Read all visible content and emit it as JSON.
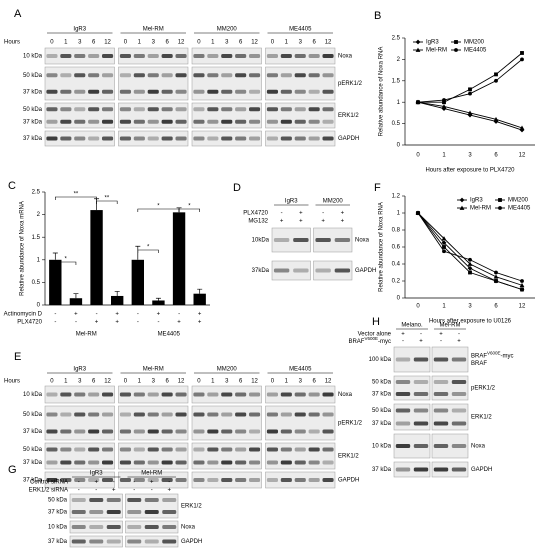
{
  "chart_data": [
    {
      "type": "line",
      "panel": "B",
      "x_label": "Hours after exposure to PLX4720",
      "y_label": "Relative abundance of Noxa RNA",
      "categories": [
        "0",
        "1",
        "3",
        "6",
        "12"
      ],
      "series": [
        {
          "name": "IgR3",
          "color": "#000000",
          "values": [
            1,
            0.85,
            0.7,
            0.55,
            0.35
          ]
        },
        {
          "name": "Mel-RM",
          "color": "#000000",
          "values": [
            1,
            0.9,
            0.75,
            0.6,
            0.4
          ]
        },
        {
          "name": "MM200",
          "color": "#000000",
          "values": [
            1,
            1,
            1.3,
            1.65,
            2.15
          ]
        },
        {
          "name": "ME4405",
          "color": "#000000",
          "values": [
            1,
            1.05,
            1.2,
            1.5,
            2.0
          ]
        }
      ],
      "ylim": [
        0,
        2.5
      ],
      "yticks": [
        0,
        0.5,
        1,
        1.5,
        2,
        2.5
      ],
      "grid": false,
      "legend": "upper left"
    },
    {
      "type": "bar",
      "panel": "C",
      "y_label": "Relative abundance of Noxa mRNA",
      "categories": [
        null,
        null,
        null,
        null,
        null,
        null,
        null,
        null
      ],
      "values": [
        1,
        0.15,
        2.1,
        0.2,
        1,
        0.1,
        2.05,
        0.25
      ],
      "errors": [
        0.15,
        0.1,
        0.25,
        0.1,
        0.3,
        0.05,
        0.1,
        0.1
      ],
      "color": "#000000",
      "conditions": [
        {
          "name": "Actinomycin D",
          "signs": [
            "-",
            "+",
            "-",
            "+",
            "-",
            "+",
            "-",
            "+"
          ]
        },
        {
          "name": "PLX4720",
          "signs": [
            "-",
            "-",
            "+",
            "+",
            "-",
            "-",
            "+",
            "+"
          ]
        }
      ],
      "groups": [
        "Mel-RM",
        "ME4405"
      ],
      "annotations": [
        "*",
        "**",
        "**",
        "*",
        "*",
        "*"
      ],
      "ylim": [
        0,
        2.5
      ],
      "yticks": [
        0,
        0.5,
        1,
        1.5,
        2,
        2.5
      ],
      "grid": false
    },
    {
      "type": "line",
      "panel": "F",
      "x_label": "Hours after exposure to U0126",
      "y_label": "Relative abundance of Noxa RNA",
      "categories": [
        "0",
        "1",
        "3",
        "6",
        "12"
      ],
      "series": [
        {
          "name": "IgR3",
          "color": "#000000",
          "values": [
            1,
            0.65,
            0.35,
            0.2,
            0.1
          ]
        },
        {
          "name": "Mel-RM",
          "color": "#000000",
          "values": [
            1,
            0.7,
            0.4,
            0.25,
            0.15
          ]
        },
        {
          "name": "MM200",
          "color": "#000000",
          "values": [
            1,
            0.6,
            0.3,
            0.2,
            0.1
          ]
        },
        {
          "name": "ME4405",
          "color": "#000000",
          "values": [
            1,
            0.55,
            0.45,
            0.3,
            0.2
          ]
        }
      ],
      "ylim": [
        0,
        1.2
      ],
      "yticks": [
        0,
        0.2,
        0.4,
        0.6,
        0.8,
        1,
        1.2
      ],
      "grid": false,
      "legend": "upper right"
    }
  ],
  "blots": [
    {
      "panel": "A",
      "row_header": "Hours",
      "cell_lines": [
        "IgR3",
        "Mel-RM",
        "MM200",
        "ME4405"
      ],
      "lanes": [
        "0",
        "1",
        "3",
        "6",
        "12"
      ],
      "rows": [
        {
          "kda": [
            "10 kDa"
          ],
          "protein": "Noxa"
        },
        {
          "kda": [
            "50 kDa",
            "37 kDa"
          ],
          "protein": "pERK1/2"
        },
        {
          "kda": [
            "50 kDa",
            "37 kDa"
          ],
          "protein": "ERK1/2"
        },
        {
          "kda": [
            "37 kDa"
          ],
          "protein": "GAPDH"
        }
      ]
    },
    {
      "panel": "D",
      "cell_lines": [
        "IgR3",
        "MM200"
      ],
      "treatments": [
        {
          "name": "PLX4720",
          "signs": [
            "-",
            "+",
            "-",
            "+"
          ]
        },
        {
          "name": "MG132",
          "signs": [
            "+",
            "+",
            "+",
            "+"
          ]
        }
      ],
      "rows": [
        {
          "kda": [
            "10kDa"
          ],
          "protein": "Noxa"
        },
        {
          "kda": [
            "37kDa"
          ],
          "protein": "GAPDH"
        }
      ]
    },
    {
      "panel": "E",
      "row_header": "Hours",
      "cell_lines": [
        "IgR3",
        "Mel-RM",
        "MM200",
        "ME4405"
      ],
      "lanes": [
        "0",
        "1",
        "3",
        "6",
        "12"
      ],
      "rows": [
        {
          "kda": [
            "10 kDa"
          ],
          "protein": "Noxa"
        },
        {
          "kda": [
            "50 kDa",
            "37 kDa"
          ],
          "protein": "pERK1/2"
        },
        {
          "kda": [
            "50 kDa",
            "37 kDa"
          ],
          "protein": "ERK1/2"
        },
        {
          "kda": [
            "37 kDa"
          ],
          "protein": "GAPDH"
        }
      ]
    },
    {
      "panel": "G",
      "cell_lines": [
        "IgR3",
        "Mel-RM"
      ],
      "treatments": [
        {
          "name": "Control siRNA",
          "signs": [
            "-",
            "+",
            "-",
            "-",
            "+",
            "-"
          ]
        },
        {
          "name": "ERK1/2 siRNA",
          "signs": [
            "-",
            "-",
            "+",
            "-",
            "-",
            "+"
          ]
        }
      ],
      "rows": [
        {
          "kda": [
            "50 kDa",
            "37 kDa"
          ],
          "protein": "ERK1/2"
        },
        {
          "kda": [
            "10 kDa"
          ],
          "protein": "Noxa"
        },
        {
          "kda": [
            "37 kDa"
          ],
          "protein": "GAPDH"
        }
      ]
    },
    {
      "panel": "H",
      "cell_lines": [
        "Melano.",
        "Mel-RM"
      ],
      "treatments": [
        {
          "name": "Vector alone",
          "signs": [
            "+",
            "-",
            "+",
            "-"
          ]
        },
        {
          "name": {
            "base": "BRAF",
            "sup": "V600E",
            "tail": "-myc"
          },
          "signs": [
            "-",
            "+",
            "-",
            "+"
          ]
        }
      ],
      "rows": [
        {
          "kda": [
            "100 kDa"
          ],
          "protein": [
            {
              "base": "BRAF",
              "sup": "V600E",
              "tail": "-myc"
            },
            "BRAF"
          ]
        },
        {
          "kda": [
            "50 kDa",
            "37 kDa"
          ],
          "protein": "pERK1/2"
        },
        {
          "kda": [
            "50 kDa",
            "37 kDa"
          ],
          "protein": "ERK1/2"
        },
        {
          "kda": [
            "10 kDa"
          ],
          "protein": "Noxa"
        },
        {
          "kda": [
            "37 kDa"
          ],
          "protein": "GAPDH"
        }
      ]
    }
  ]
}
